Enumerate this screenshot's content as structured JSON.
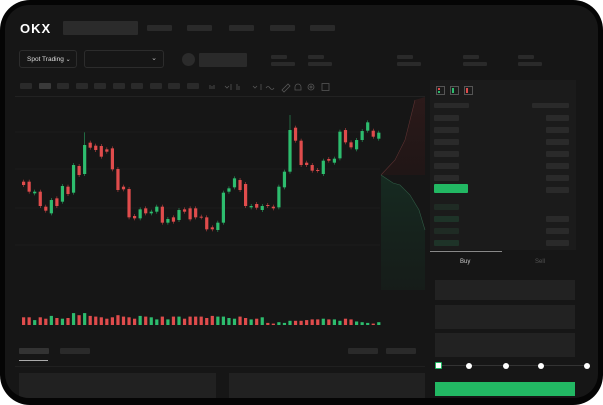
{
  "header": {
    "logo": "OKX"
  },
  "market": {
    "mode_label": "Spot Trading",
    "chevron_icon": "chevron-down-icon"
  },
  "chart_toolbar": {
    "icons": [
      "candle-type-icon",
      "indicator-icon",
      "line-icon",
      "ruler-icon",
      "camera-icon",
      "settings-icon",
      "fullscreen-icon"
    ]
  },
  "order_book": {
    "view_icons": [
      "both-sides-icon",
      "bids-only-icon",
      "asks-only-icon"
    ]
  },
  "trade": {
    "buy_tab": "Buy",
    "sell_tab": "Sell",
    "slider_percent": 0
  },
  "colors": {
    "up": "#2dbd6e",
    "down": "#e04c4c",
    "buy_button": "#22b863",
    "background": "#161616"
  },
  "chart_data": {
    "type": "candlestick",
    "candles": [
      [
        29.5,
        28.5
      ],
      [
        29.5,
        26.5
      ],
      [
        26.0,
        26.5
      ],
      [
        26.5,
        22.2
      ],
      [
        22.0,
        20.8
      ],
      [
        20.0,
        24.0
      ],
      [
        24.5,
        22.2
      ],
      [
        23.5,
        28.2
      ],
      [
        28.0,
        25.8
      ],
      [
        26.2,
        34.5
      ],
      [
        34.2,
        31.5
      ],
      [
        31.8,
        40.5,
        44.3
      ],
      [
        41.2,
        39.7
      ],
      [
        40.3,
        39.0
      ],
      [
        40.2,
        37.0
      ],
      [
        39.2,
        38.5
      ],
      [
        39.5,
        33.2
      ],
      [
        33.3,
        27.0
      ],
      [
        28.0,
        27.2
      ],
      [
        27.3,
        18.8
      ],
      [
        19.2,
        18.5
      ],
      [
        18.5,
        21.2
      ],
      [
        21.5,
        20.0
      ],
      [
        20.0,
        20.5
      ],
      [
        20.5,
        22.0
      ],
      [
        22.0,
        17.2
      ],
      [
        17.2,
        18.3
      ],
      [
        18.8,
        17.5
      ],
      [
        18.0,
        21.0
      ],
      [
        21.2,
        20.5
      ],
      [
        21.5,
        18.2
      ],
      [
        21.5,
        18.8
      ],
      [
        19.0,
        18.8
      ],
      [
        18.8,
        15.2
      ],
      [
        15.8,
        15.2
      ],
      [
        15.0,
        17.2
      ],
      [
        17.2,
        26.2
      ],
      [
        26.5,
        27.5
      ],
      [
        27.8,
        30.5
      ],
      [
        30.0,
        27.0
      ],
      [
        28.8,
        22.2
      ],
      [
        21.8,
        22.2
      ],
      [
        22.8,
        21.7
      ],
      [
        21.0,
        22.2
      ],
      [
        22.5,
        22.2
      ],
      [
        22.0,
        21.5
      ],
      [
        21.8,
        28.0
      ],
      [
        27.8,
        32.5
      ],
      [
        32.5,
        45.0,
        49.5
      ],
      [
        45.7,
        41.8
      ],
      [
        41.8,
        34.5
      ],
      [
        35.2,
        34.5
      ],
      [
        34.5,
        32.8
      ],
      [
        33.0,
        32.8
      ],
      [
        31.8,
        35.8
      ],
      [
        36.3,
        35.8
      ],
      [
        35.2,
        36.4
      ],
      [
        36.5,
        44.5
      ],
      [
        45.0,
        41.3
      ],
      [
        41.3,
        39.8
      ],
      [
        39.2,
        42.0
      ],
      [
        42.0,
        44.7
      ],
      [
        44.8,
        47.3
      ],
      [
        44.8,
        43.0
      ],
      [
        42.4,
        44.2
      ]
    ],
    "volume": [
      11,
      11,
      7,
      11,
      9,
      13,
      10,
      9,
      10,
      17,
      14,
      17,
      13,
      12,
      11,
      9,
      11,
      14,
      12,
      11,
      9,
      13,
      12,
      11,
      8,
      12,
      8,
      12,
      12,
      9,
      12,
      12,
      12,
      10,
      13,
      12,
      12,
      10,
      9,
      12,
      10,
      8,
      9,
      11,
      3,
      2,
      4,
      3,
      6,
      6,
      6,
      7,
      8,
      8,
      9,
      8,
      8,
      6,
      9,
      8,
      5,
      4,
      3,
      2,
      4
    ]
  }
}
